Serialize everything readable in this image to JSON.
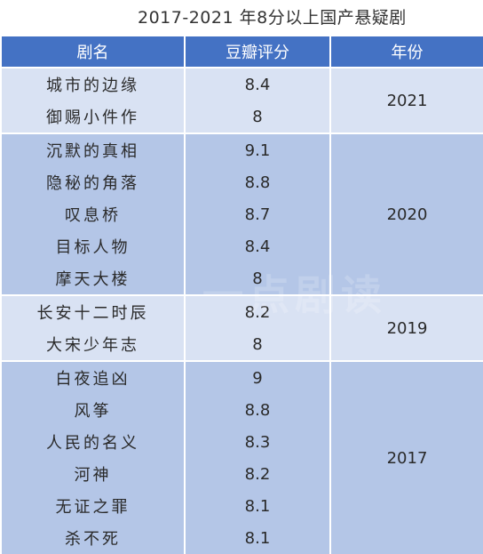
{
  "title": "2017-2021 年8分以上国产悬疑剧",
  "headers": {
    "name": "剧名",
    "score": "豆瓣评分",
    "year": "年份"
  },
  "groups": [
    {
      "year": "2021",
      "rows": [
        {
          "name": "城市的边缘",
          "score": "8.4"
        },
        {
          "name": "御赐小件作",
          "score": "8"
        }
      ]
    },
    {
      "year": "2020",
      "rows": [
        {
          "name": "沉默的真相",
          "score": "9.1"
        },
        {
          "name": "隐秘的角落",
          "score": "8.8"
        },
        {
          "name": "叹息桥",
          "score": "8.7"
        },
        {
          "name": "目标人物",
          "score": "8.4"
        },
        {
          "name": "摩天大楼",
          "score": "8"
        }
      ]
    },
    {
      "year": "2019",
      "rows": [
        {
          "name": "长安十二时辰",
          "score": "8.2"
        },
        {
          "name": "大宋少年志",
          "score": "8"
        }
      ]
    },
    {
      "year": "2017",
      "rows": [
        {
          "name": "白夜追凶",
          "score": "9"
        },
        {
          "name": "风筝",
          "score": "8.8"
        },
        {
          "name": "人民的名义",
          "score": "8.3"
        },
        {
          "name": "河神",
          "score": "8.2"
        },
        {
          "name": "无证之罪",
          "score": "8.1"
        },
        {
          "name": "杀不死",
          "score": "8.1"
        }
      ]
    }
  ]
}
